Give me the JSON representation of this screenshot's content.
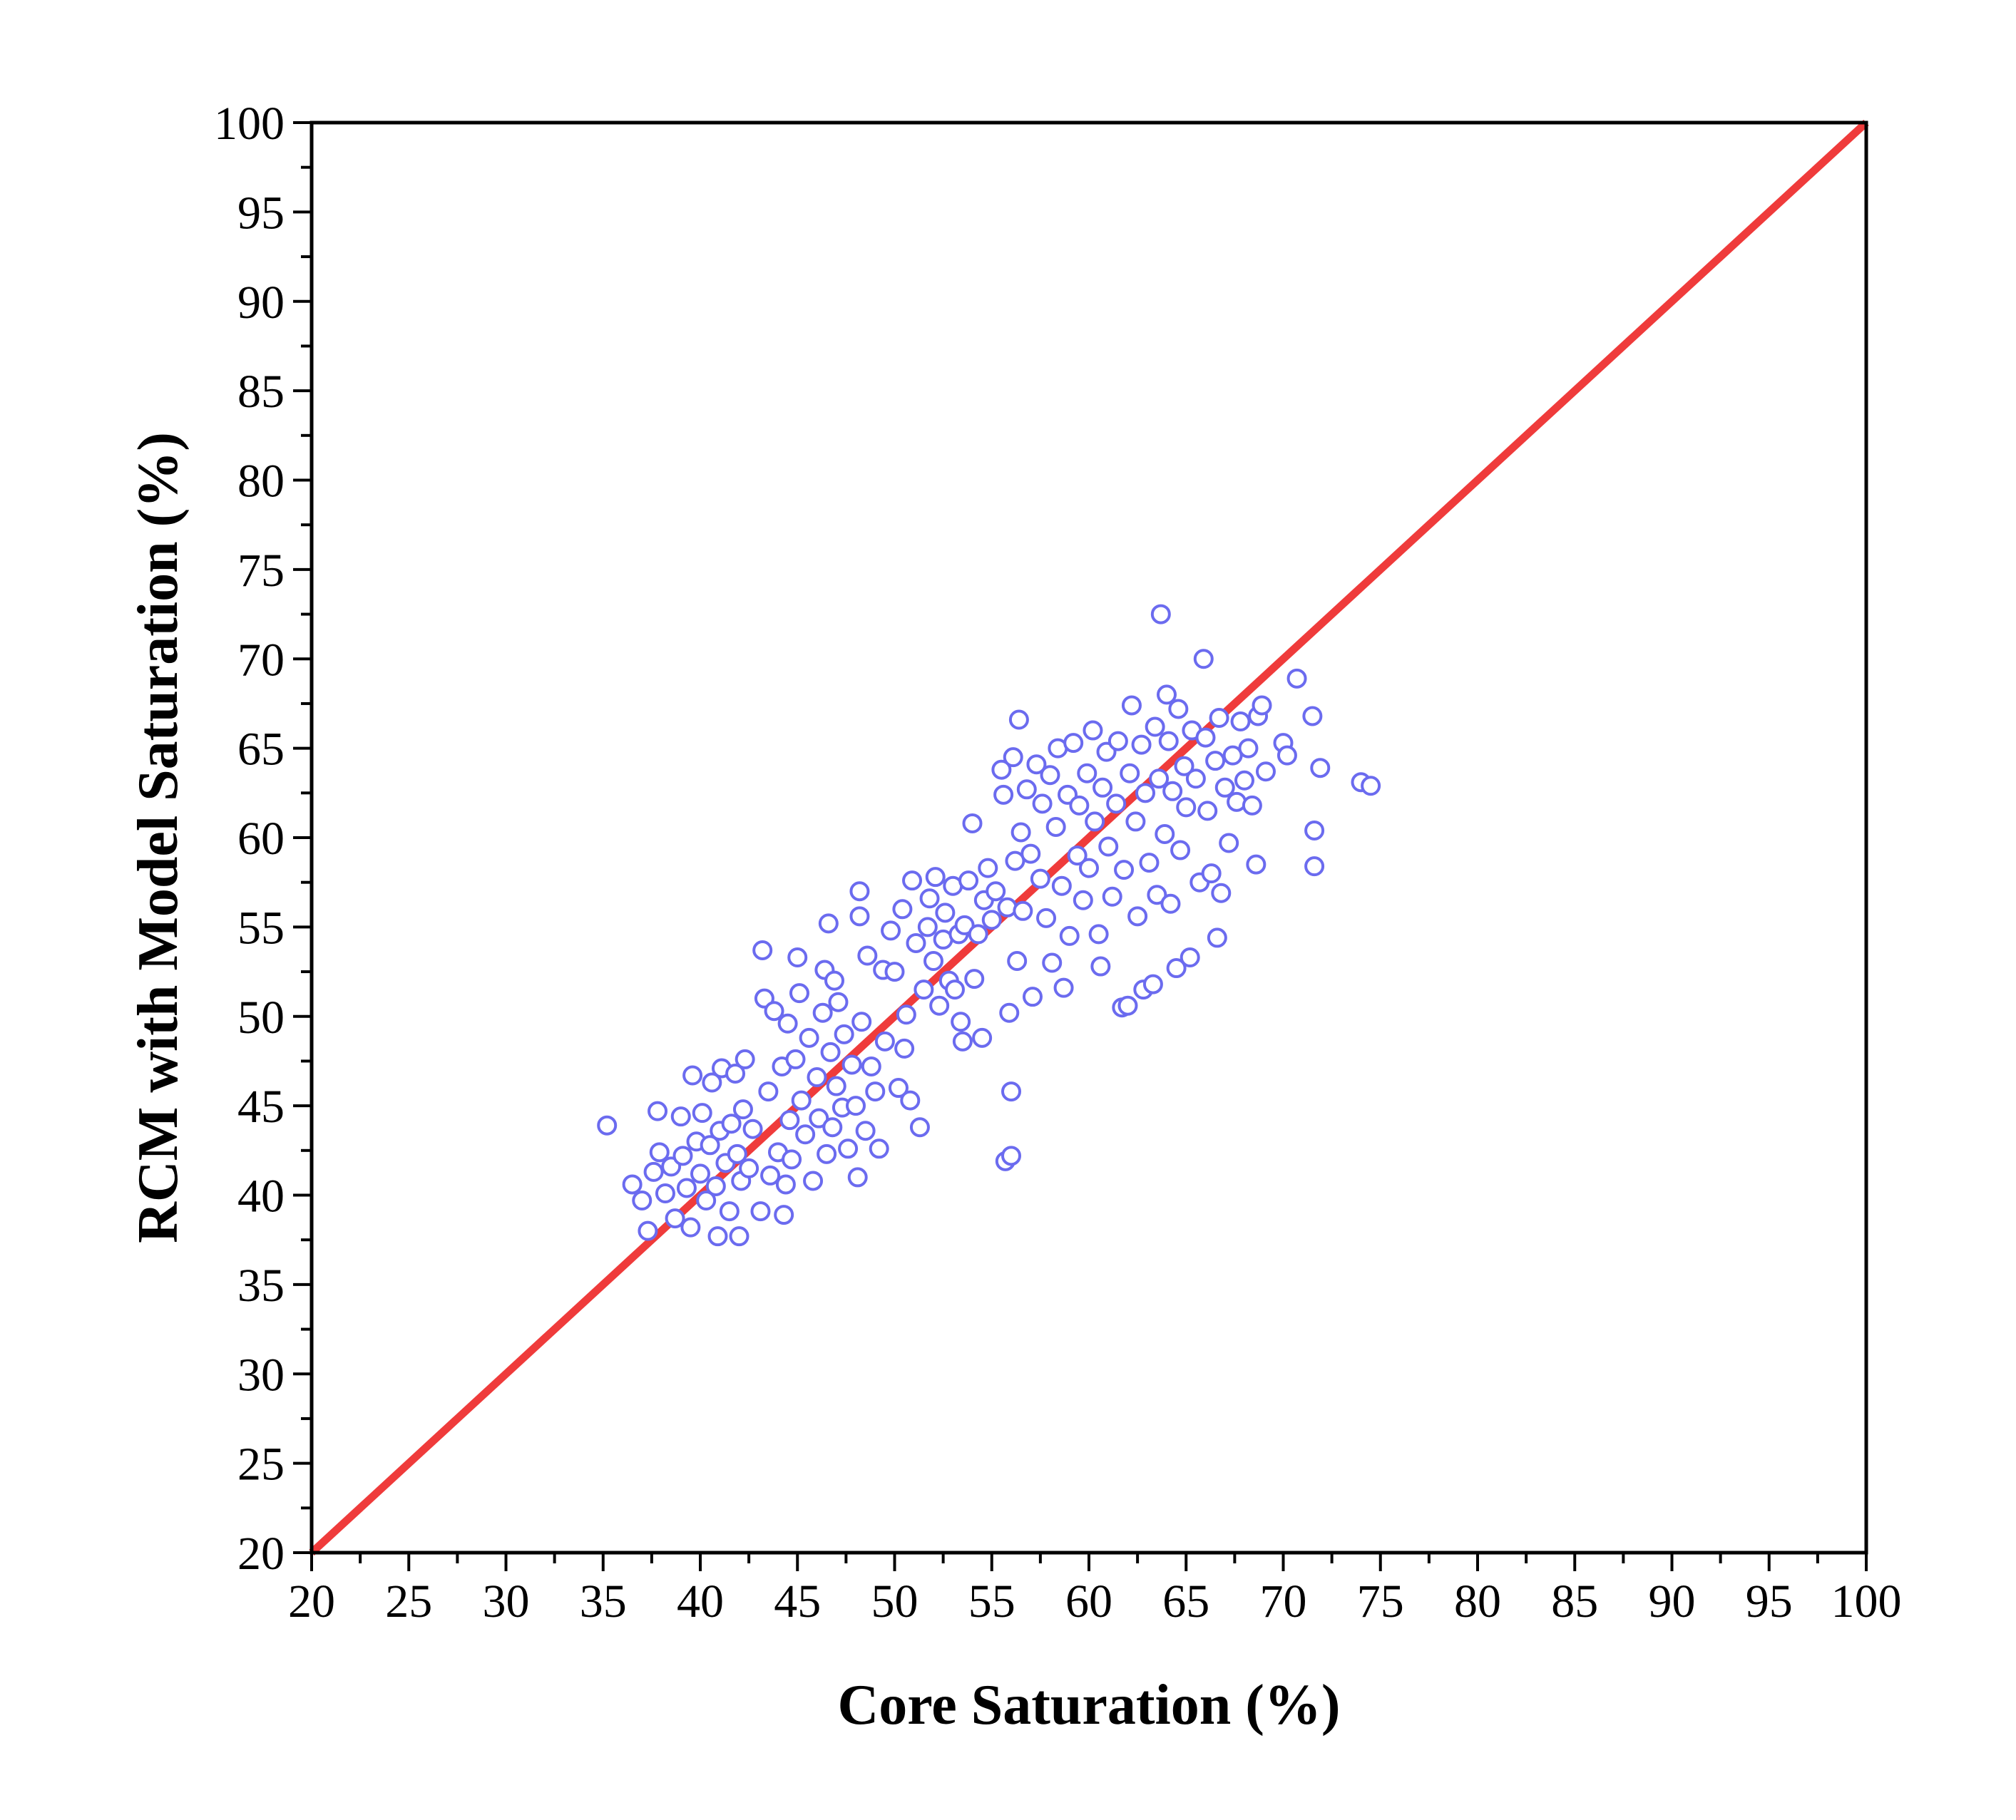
{
  "chart_data": {
    "type": "scatter",
    "title": "",
    "xlabel": "Core Saturation (%)",
    "ylabel": "RCM with Model Saturation (%)",
    "xlim": [
      20,
      100
    ],
    "ylim": [
      20,
      100
    ],
    "x_ticks": [
      20,
      25,
      30,
      35,
      40,
      45,
      50,
      55,
      60,
      65,
      70,
      75,
      80,
      85,
      90,
      95,
      100
    ],
    "y_ticks": [
      20,
      25,
      30,
      35,
      40,
      45,
      50,
      55,
      60,
      65,
      70,
      75,
      80,
      85,
      90,
      95,
      100
    ],
    "grid": false,
    "legend": "none",
    "colors": {
      "points": "#6b6bef",
      "reference_line": "#ef3b3b",
      "axes": "#000000"
    },
    "reference_line": {
      "name": "",
      "points": [
        [
          20,
          20
        ],
        [
          100,
          100
        ]
      ]
    },
    "series": [
      {
        "name": "",
        "marker": "open-circle",
        "points": [
          [
            35.2,
            43.9
          ],
          [
            36.5,
            40.6
          ],
          [
            37.0,
            39.7
          ],
          [
            37.3,
            38.0
          ],
          [
            37.6,
            41.3
          ],
          [
            37.8,
            44.7
          ],
          [
            37.9,
            42.4
          ],
          [
            38.2,
            40.1
          ],
          [
            38.5,
            41.6
          ],
          [
            38.7,
            38.7
          ],
          [
            39.0,
            44.4
          ],
          [
            39.1,
            42.2
          ],
          [
            39.3,
            40.4
          ],
          [
            39.5,
            38.2
          ],
          [
            39.6,
            46.7
          ],
          [
            39.8,
            43.0
          ],
          [
            40.0,
            41.2
          ],
          [
            40.1,
            44.6
          ],
          [
            40.3,
            39.7
          ],
          [
            40.5,
            42.8
          ],
          [
            40.6,
            46.3
          ],
          [
            40.8,
            40.5
          ],
          [
            40.9,
            37.7
          ],
          [
            41.0,
            43.6
          ],
          [
            41.1,
            47.1
          ],
          [
            41.3,
            41.8
          ],
          [
            41.5,
            39.1
          ],
          [
            41.6,
            44.0
          ],
          [
            41.8,
            46.8
          ],
          [
            41.9,
            42.3
          ],
          [
            42.0,
            37.7
          ],
          [
            42.1,
            40.8
          ],
          [
            42.2,
            44.8
          ],
          [
            42.3,
            47.6
          ],
          [
            42.5,
            41.5
          ],
          [
            42.7,
            43.7
          ],
          [
            43.1,
            39.1
          ],
          [
            43.2,
            53.7
          ],
          [
            43.3,
            51.0
          ],
          [
            43.5,
            45.8
          ],
          [
            43.6,
            41.1
          ],
          [
            43.8,
            50.3
          ],
          [
            44.0,
            42.4
          ],
          [
            44.2,
            47.2
          ],
          [
            44.3,
            38.9
          ],
          [
            44.4,
            40.6
          ],
          [
            44.5,
            49.6
          ],
          [
            44.6,
            44.2
          ],
          [
            44.7,
            42.0
          ],
          [
            44.9,
            47.6
          ],
          [
            45.0,
            53.3
          ],
          [
            45.1,
            51.3
          ],
          [
            45.2,
            45.3
          ],
          [
            45.4,
            43.4
          ],
          [
            45.6,
            48.8
          ],
          [
            45.8,
            40.8
          ],
          [
            46.0,
            46.6
          ],
          [
            46.1,
            44.3
          ],
          [
            46.3,
            50.2
          ],
          [
            46.4,
            52.6
          ],
          [
            46.5,
            42.3
          ],
          [
            46.6,
            55.2
          ],
          [
            46.7,
            48.0
          ],
          [
            46.8,
            43.8
          ],
          [
            46.9,
            52.0
          ],
          [
            47.0,
            46.1
          ],
          [
            47.1,
            50.8
          ],
          [
            47.3,
            44.9
          ],
          [
            47.4,
            49.0
          ],
          [
            47.6,
            42.6
          ],
          [
            47.8,
            47.3
          ],
          [
            48.0,
            45.0
          ],
          [
            48.1,
            41.0
          ],
          [
            48.2,
            57.0
          ],
          [
            48.2,
            55.6
          ],
          [
            48.3,
            49.7
          ],
          [
            48.5,
            43.6
          ],
          [
            48.6,
            53.4
          ],
          [
            48.8,
            47.2
          ],
          [
            49.0,
            45.8
          ],
          [
            49.2,
            42.6
          ],
          [
            49.4,
            52.6
          ],
          [
            49.5,
            48.6
          ],
          [
            49.8,
            54.8
          ],
          [
            50.0,
            52.5
          ],
          [
            50.2,
            46.0
          ],
          [
            50.4,
            56.0
          ],
          [
            50.5,
            48.2
          ],
          [
            50.6,
            50.1
          ],
          [
            50.8,
            45.3
          ],
          [
            50.9,
            57.6
          ],
          [
            51.1,
            54.1
          ],
          [
            51.3,
            43.8
          ],
          [
            51.5,
            51.5
          ],
          [
            51.7,
            55.0
          ],
          [
            51.8,
            56.6
          ],
          [
            52.0,
            53.1
          ],
          [
            52.1,
            57.8
          ],
          [
            52.3,
            50.6
          ],
          [
            52.5,
            54.3
          ],
          [
            52.6,
            55.8
          ],
          [
            52.8,
            52.0
          ],
          [
            53.0,
            57.3
          ],
          [
            53.1,
            51.5
          ],
          [
            53.3,
            54.6
          ],
          [
            53.4,
            49.7
          ],
          [
            53.5,
            48.6
          ],
          [
            53.6,
            55.1
          ],
          [
            53.8,
            57.6
          ],
          [
            54.0,
            60.8
          ],
          [
            54.1,
            52.1
          ],
          [
            54.3,
            54.6
          ],
          [
            54.5,
            48.8
          ],
          [
            54.6,
            56.5
          ],
          [
            54.8,
            58.3
          ],
          [
            55.0,
            55.4
          ],
          [
            55.2,
            57.0
          ],
          [
            55.5,
            63.8
          ],
          [
            55.6,
            62.4
          ],
          [
            55.7,
            41.9
          ],
          [
            55.8,
            56.1
          ],
          [
            55.9,
            50.2
          ],
          [
            56.0,
            42.2
          ],
          [
            56.0,
            45.8
          ],
          [
            56.1,
            64.5
          ],
          [
            56.2,
            58.7
          ],
          [
            56.3,
            53.1
          ],
          [
            56.4,
            66.6
          ],
          [
            56.5,
            60.3
          ],
          [
            56.6,
            55.9
          ],
          [
            56.8,
            62.7
          ],
          [
            57.0,
            59.1
          ],
          [
            57.1,
            51.1
          ],
          [
            57.3,
            64.1
          ],
          [
            57.5,
            57.7
          ],
          [
            57.6,
            61.9
          ],
          [
            57.8,
            55.5
          ],
          [
            58.0,
            63.5
          ],
          [
            58.1,
            53.0
          ],
          [
            58.3,
            60.6
          ],
          [
            58.4,
            65.0
          ],
          [
            58.6,
            57.3
          ],
          [
            58.7,
            51.6
          ],
          [
            58.9,
            62.4
          ],
          [
            59.0,
            54.5
          ],
          [
            59.2,
            65.3
          ],
          [
            59.4,
            59.0
          ],
          [
            59.5,
            61.8
          ],
          [
            59.7,
            56.5
          ],
          [
            59.9,
            63.6
          ],
          [
            60.0,
            58.3
          ],
          [
            60.2,
            66.0
          ],
          [
            60.3,
            60.9
          ],
          [
            60.5,
            54.6
          ],
          [
            60.6,
            52.8
          ],
          [
            60.7,
            62.8
          ],
          [
            60.9,
            64.8
          ],
          [
            61.0,
            59.5
          ],
          [
            61.2,
            56.7
          ],
          [
            61.4,
            61.9
          ],
          [
            61.5,
            65.4
          ],
          [
            61.7,
            50.5
          ],
          [
            61.8,
            58.2
          ],
          [
            62.0,
            50.6
          ],
          [
            62.1,
            63.6
          ],
          [
            62.2,
            67.4
          ],
          [
            62.4,
            60.9
          ],
          [
            62.5,
            55.6
          ],
          [
            62.7,
            65.2
          ],
          [
            62.8,
            51.5
          ],
          [
            62.9,
            62.5
          ],
          [
            63.1,
            58.6
          ],
          [
            63.3,
            51.8
          ],
          [
            63.4,
            66.2
          ],
          [
            63.5,
            56.8
          ],
          [
            63.6,
            63.3
          ],
          [
            63.7,
            72.5
          ],
          [
            63.9,
            60.2
          ],
          [
            64.0,
            68.0
          ],
          [
            64.1,
            65.4
          ],
          [
            64.2,
            56.3
          ],
          [
            64.3,
            62.6
          ],
          [
            64.5,
            52.7
          ],
          [
            64.6,
            67.2
          ],
          [
            64.7,
            59.3
          ],
          [
            64.9,
            64.0
          ],
          [
            65.0,
            61.7
          ],
          [
            65.2,
            53.3
          ],
          [
            65.3,
            66.0
          ],
          [
            65.5,
            63.3
          ],
          [
            65.7,
            57.5
          ],
          [
            65.9,
            70.0
          ],
          [
            66.0,
            65.6
          ],
          [
            66.1,
            61.5
          ],
          [
            66.3,
            58.0
          ],
          [
            66.5,
            64.3
          ],
          [
            66.6,
            54.4
          ],
          [
            66.7,
            66.7
          ],
          [
            66.8,
            56.9
          ],
          [
            67.0,
            62.8
          ],
          [
            67.2,
            59.7
          ],
          [
            67.4,
            64.6
          ],
          [
            67.6,
            62.0
          ],
          [
            67.8,
            66.5
          ],
          [
            68.0,
            63.2
          ],
          [
            68.2,
            65.0
          ],
          [
            68.4,
            61.8
          ],
          [
            68.6,
            58.5
          ],
          [
            68.7,
            66.8
          ],
          [
            68.9,
            67.4
          ],
          [
            69.1,
            63.7
          ],
          [
            70.0,
            65.3
          ],
          [
            70.2,
            64.6
          ],
          [
            70.7,
            68.9
          ],
          [
            71.5,
            66.8
          ],
          [
            71.6,
            60.4
          ],
          [
            71.6,
            58.4
          ],
          [
            71.9,
            63.9
          ],
          [
            74.0,
            63.1
          ],
          [
            74.5,
            62.9
          ]
        ]
      }
    ]
  }
}
